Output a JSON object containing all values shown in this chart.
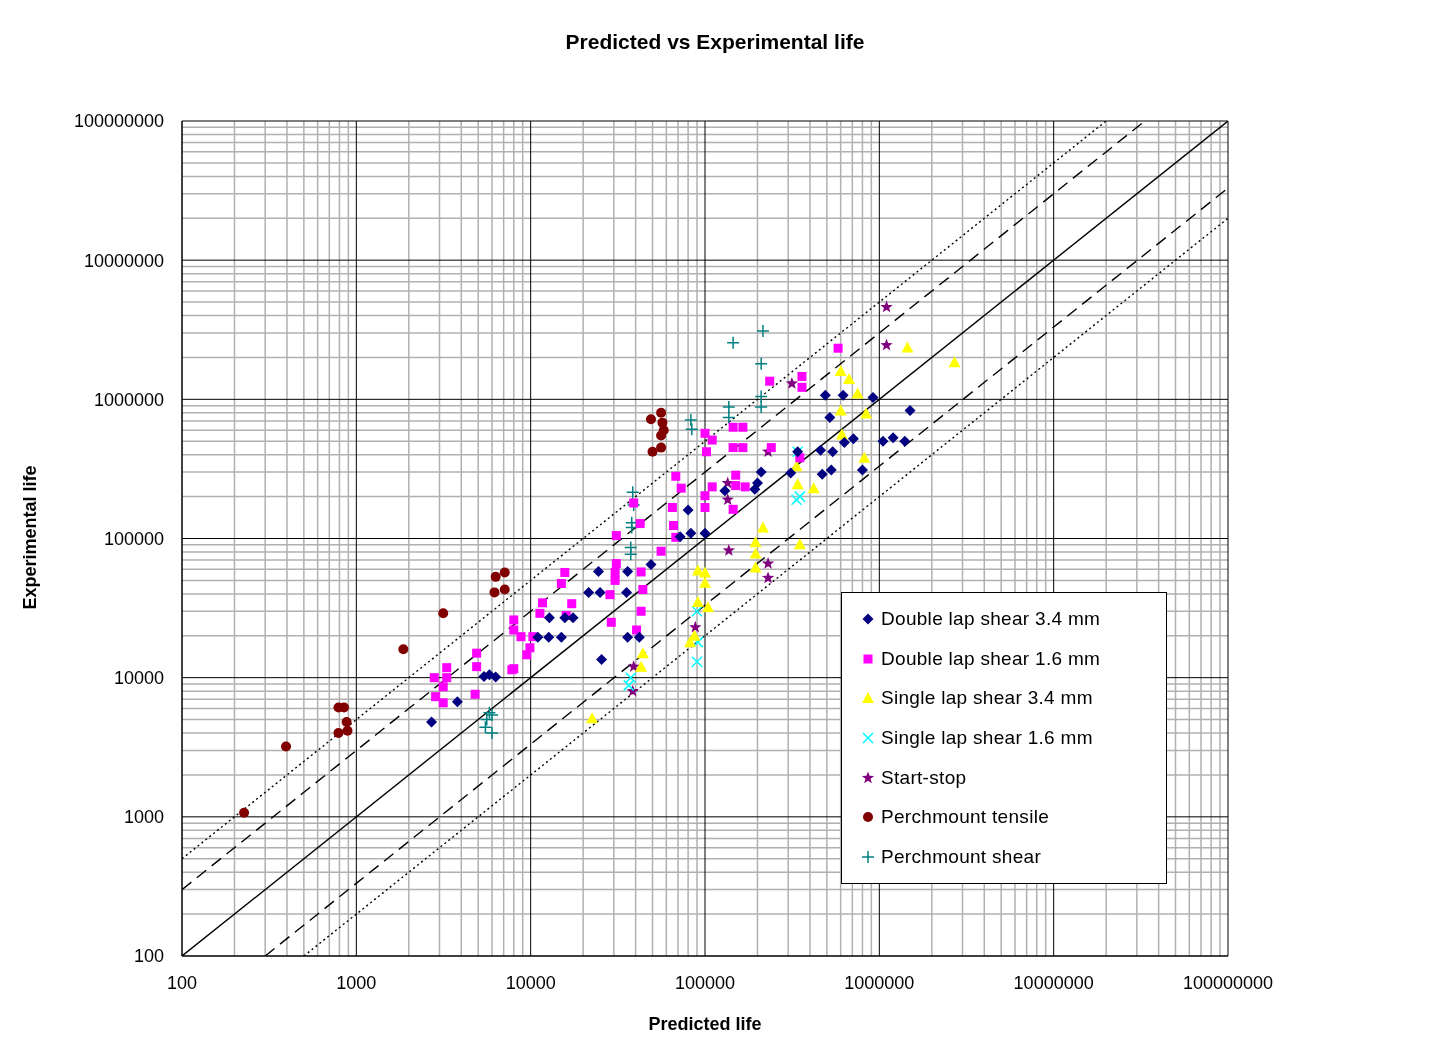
{
  "chart_data": {
    "type": "scatter",
    "title": "Predicted vs Experimental life",
    "xlabel": "Predicted life",
    "ylabel": "Experimental life",
    "log": "xy",
    "grid": true,
    "legend": "bottom right",
    "xlim": [
      100,
      100000000
    ],
    "ylim": [
      100,
      100000000
    ],
    "xticks": [
      100,
      1000,
      10000,
      100000,
      1000000,
      10000000,
      100000000
    ],
    "yticks": [
      100,
      1000,
      10000,
      100000,
      1000000,
      10000000,
      100000000
    ],
    "series": [
      {
        "name": "Double lap shear 3.4 mm",
        "color": "#000080",
        "marker": "diamond",
        "x": [
          2700,
          3800,
          5400,
          5800,
          6300,
          12800,
          15700,
          17500,
          11000,
          12700,
          15000,
          25500,
          24500,
          25000,
          21500,
          36000,
          35500,
          49000,
          42000,
          36000,
          80000,
          83000,
          100000,
          72000,
          490000,
          620000,
          920000,
          520000,
          1500000,
          630000,
          710000,
          1050000,
          1200000,
          1400000,
          460000,
          540000,
          470000,
          530000,
          800000,
          310000,
          210000,
          200000,
          193000,
          130000,
          340000
        ],
        "values": [
          4800,
          6700,
          10200,
          10500,
          10100,
          27000,
          27000,
          27000,
          19500,
          19500,
          19500,
          13500,
          58000,
          41000,
          41000,
          58000,
          41000,
          65000,
          19500,
          19500,
          160000,
          109000,
          109000,
          103000,
          1070000,
          1070000,
          1030000,
          740000,
          830000,
          490000,
          520000,
          500000,
          530000,
          500000,
          430000,
          420000,
          290000,
          310000,
          310000,
          295000,
          300000,
          250000,
          226000,
          220000,
          420000
        ]
      },
      {
        "name": "Double lap shear 1.6 mm",
        "color": "#ff00ff",
        "marker": "square",
        "x": [
          2800,
          3300,
          3300,
          3150,
          2850,
          3150,
          4900,
          4900,
          4800,
          7800,
          8000,
          8000,
          8000,
          8800,
          10300,
          9900,
          9500,
          11300,
          11700,
          15700,
          15000,
          17200,
          16000,
          29000,
          28500,
          31000,
          31000,
          30500,
          30500,
          40500,
          43000,
          44000,
          43000,
          42500,
          39000,
          56000,
          65000,
          66000,
          68000,
          68000,
          73000,
          100000,
          110000,
          102000,
          100000,
          110000,
          100000,
          580000,
          235000,
          360000,
          360000,
          145000,
          165000,
          145000,
          165000,
          240000,
          150000,
          150000,
          170000,
          145000,
          350000
        ],
        "values": [
          10000,
          11800,
          10000,
          8600,
          7300,
          6600,
          15000,
          12000,
          7600,
          11400,
          26000,
          22000,
          11600,
          19700,
          19700,
          16400,
          14600,
          29000,
          34500,
          57000,
          47500,
          34000,
          28000,
          25000,
          39500,
          105000,
          66000,
          57000,
          50000,
          22000,
          30000,
          43000,
          57500,
          128000,
          180000,
          81000,
          167000,
          124000,
          102000,
          280000,
          230000,
          570000,
          510000,
          420000,
          167000,
          235000,
          203000,
          2330000,
          1350000,
          1460000,
          1220000,
          630000,
          630000,
          450000,
          450000,
          450000,
          285000,
          240000,
          235000,
          162000,
          380000
        ]
      },
      {
        "name": "Single lap shear 3.4 mm",
        "color": "#ffff00",
        "marker": "triangle",
        "x": [
          22500,
          44000,
          43000,
          91000,
          100000,
          100000,
          91000,
          104000,
          82000,
          87000,
          215000,
          195000,
          195000,
          195000,
          340000,
          335000,
          420000,
          350000,
          600000,
          670000,
          750000,
          600000,
          840000,
          610000,
          820000,
          1450000,
          2700000
        ],
        "values": [
          5100,
          15000,
          12000,
          59000,
          57000,
          48000,
          35000,
          32000,
          18000,
          20000,
          120000,
          94000,
          78000,
          62000,
          245000,
          330000,
          230000,
          91000,
          1600000,
          1400000,
          1100000,
          830000,
          790000,
          560000,
          380000,
          2360000,
          1850000
        ]
      },
      {
        "name": "Single lap shear 1.6 mm",
        "color": "#00ffff",
        "marker": "cross",
        "x": [
          90000,
          91000,
          90000,
          37500,
          36500,
          340000,
          335000,
          350000
        ],
        "values": [
          30000,
          18000,
          13000,
          10000,
          8800,
          420000,
          190000,
          200000
        ]
      },
      {
        "name": "Start-stop",
        "color": "#800080",
        "marker": "star",
        "x": [
          39000,
          38500,
          88000,
          1100000,
          1100000,
          315000,
          230000,
          135000,
          135000,
          137000,
          230000,
          230000
        ],
        "values": [
          12000,
          8000,
          23000,
          4600000,
          2450000,
          1300000,
          420000,
          250000,
          190000,
          82000,
          66000,
          52000
        ]
      },
      {
        "name": "Perchmount tensile",
        "color": "#800000",
        "marker": "circle",
        "x": [
          227,
          395,
          790,
          850,
          880,
          790,
          890,
          1860,
          3150,
          6300,
          6200,
          7100,
          7100,
          49000,
          56000,
          57000,
          58000,
          56000,
          50000,
          56000
        ],
        "values": [
          1070,
          3200,
          6100,
          6100,
          4800,
          4000,
          4150,
          16000,
          29000,
          53000,
          41000,
          43000,
          57000,
          720000,
          800000,
          680000,
          600000,
          550000,
          420000,
          450000
        ]
      },
      {
        "name": "Perchmount shear",
        "color": "#008080",
        "marker": "plus",
        "x": [
          5800,
          6000,
          5600,
          5500,
          6000,
          83000,
          84000,
          38500,
          39000,
          38000,
          38000,
          37500,
          37500,
          215000,
          145000,
          210000,
          210000,
          210000,
          137000,
          137000
        ],
        "values": [
          5600,
          5400,
          5000,
          4400,
          4000,
          710000,
          610000,
          215000,
          174000,
          130000,
          120000,
          86000,
          77000,
          3100000,
          2550000,
          1800000,
          1050000,
          880000,
          880000,
          740000
        ]
      },
      {
        "type": "line",
        "color": "#000000",
        "line_style": "solid",
        "x": [
          100,
          100000000
        ],
        "values": [
          100,
          100000000
        ]
      },
      {
        "type": "line",
        "color": "#000000",
        "line_style": "dashed",
        "x": [
          100,
          33000000
        ],
        "values": [
          300,
          99000000
        ]
      },
      {
        "type": "line",
        "color": "#000000",
        "line_style": "dashed",
        "x": [
          300,
          100000000
        ],
        "values": [
          100,
          33000000
        ]
      },
      {
        "type": "line",
        "color": "#000000",
        "line_style": "dotted",
        "x": [
          100,
          20000000
        ],
        "values": [
          500,
          100000000
        ]
      },
      {
        "type": "line",
        "color": "#000000",
        "line_style": "dotted",
        "x": [
          500,
          100000000
        ],
        "values": [
          100,
          20000000
        ]
      }
    ]
  }
}
